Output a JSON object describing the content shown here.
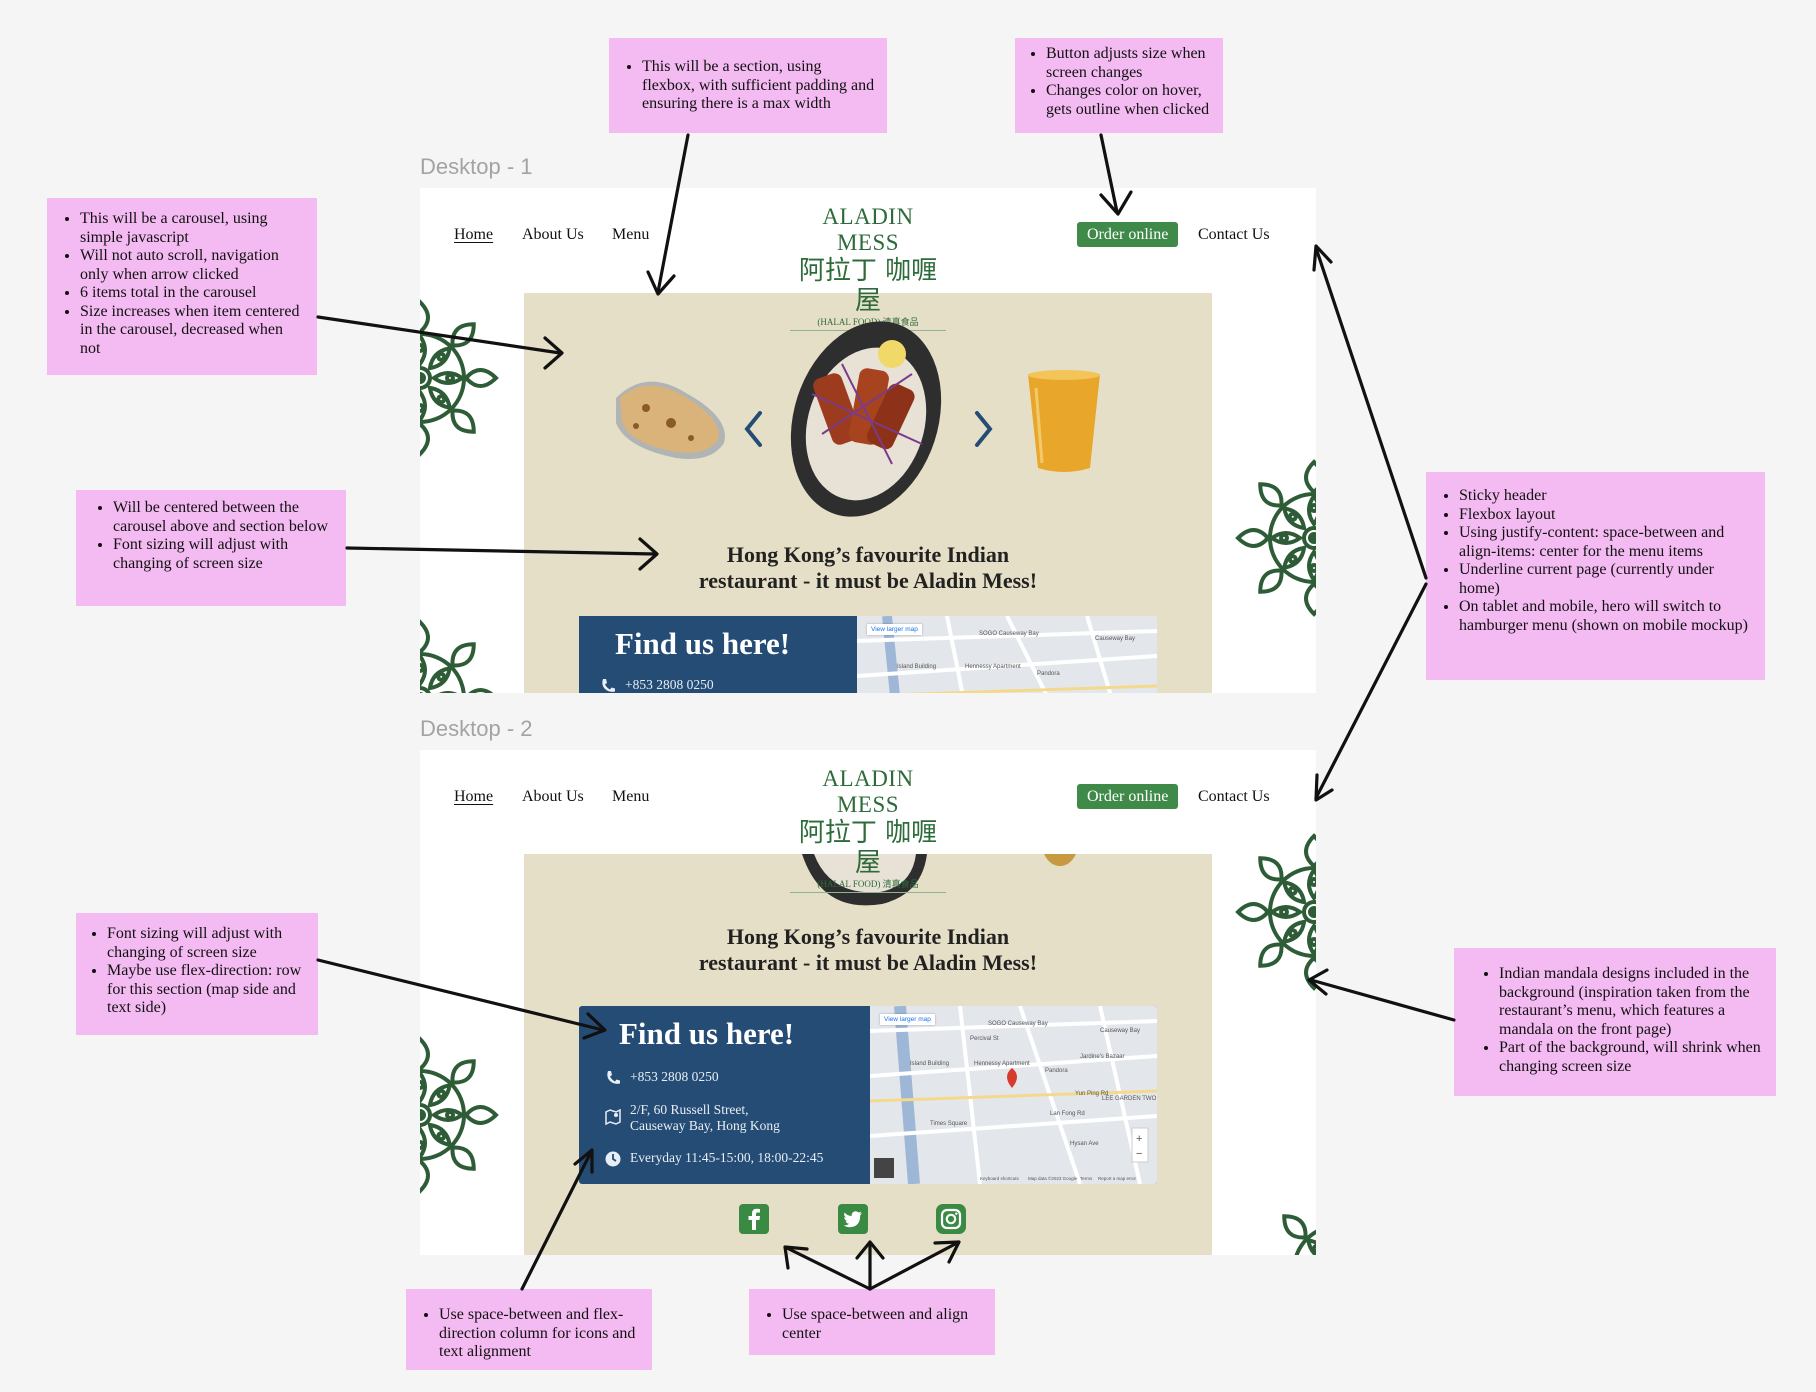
{
  "notes": {
    "section": [
      "This will be a section, using flexbox, with sufficient padding and ensuring there is a max width"
    ],
    "button": [
      "Button adjusts size when screen changes",
      "Changes color on hover, gets outline when clicked"
    ],
    "carousel": [
      "This will be a carousel, using simple javascript",
      "Will not auto scroll, navigation only when arrow clicked",
      "6 items total in the carousel",
      "Size increases when item centered in the carousel, decreased when not"
    ],
    "tagline": [
      "Will be centered between the carousel above and section below",
      "Font sizing will adjust with changing of screen size"
    ],
    "header": [
      "Sticky header",
      "Flexbox layout",
      "Using justify-content: space-between and align-items: center for the menu items",
      "Underline current page (currently under home)",
      "On tablet and mobile, hero will switch to hamburger menu (shown on mobile mockup)"
    ],
    "findus": [
      "Font sizing will adjust with changing of screen size",
      "Maybe use flex-direction: row for this section (map side and text side)"
    ],
    "mandala": [
      "Indian mandala designs included in the background (inspiration taken from the restaurant’s menu, which features a mandala on the front page)",
      "Part of the background, will shrink when changing screen size"
    ],
    "icons": [
      "Use space-between and flex-direction column for icons and text alignment"
    ],
    "social": [
      "Use space-between and align center"
    ]
  },
  "frames": [
    "Desktop - 1",
    "Desktop - 2"
  ],
  "nav": {
    "home": "Home",
    "about": "About Us",
    "menu": "Menu",
    "order": "Order online",
    "contact": "Contact Us"
  },
  "logo": {
    "en": "ALADIN MESS",
    "zh": "阿拉丁 咖喱屋",
    "halal": "(HALAL FOOD) 清真食品"
  },
  "tagline": {
    "line1": "Hong Kong’s favourite Indian",
    "line2": "restaurant - it must be Aladin Mess!"
  },
  "findus": {
    "title": "Find us here!",
    "phone": "+853 2808 0250",
    "address1": "2/F, 60 Russell Street,",
    "address2": "Causeway Bay, Hong Kong",
    "hours": "Everyday 11:45-15:00, 18:00-22:45",
    "map_link": "View larger map"
  },
  "map_labels": [
    "SOGO Causeway Bay",
    "Causeway Bay",
    "Hennessy Apartment",
    "Pandora",
    "Jardine's Bazaar",
    "Island Building",
    "Times Square",
    "Lan Fong Rd",
    "LEE GARDEN TWO",
    "Yun Ping Rd",
    "Hysan Ave",
    "Percival St",
    "Keyboard shortcuts",
    "Map data ©2023 Google",
    "Terms",
    "Report a map error"
  ],
  "social": [
    "facebook-icon",
    "twitter-icon",
    "instagram-icon"
  ],
  "colors": {
    "note": "#f4baf2",
    "hero": "#e6dfc7",
    "brand_green": "#3f8a49",
    "findus_blue": "#254c74",
    "mandala": "#2d5c36"
  }
}
